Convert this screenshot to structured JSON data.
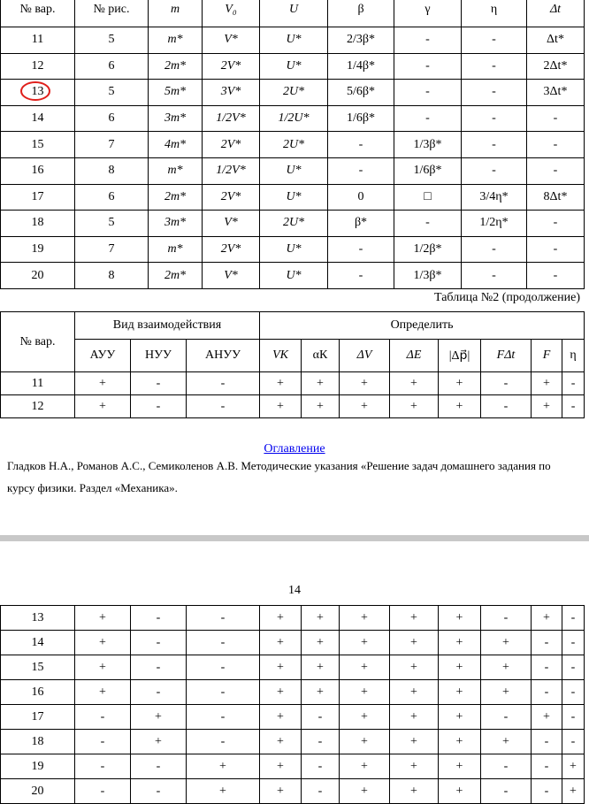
{
  "table1": {
    "header": [
      "№ вар.",
      "№ рис.",
      "m",
      "V₀",
      "U",
      "β",
      "γ",
      "η",
      "Δt"
    ],
    "rows": [
      [
        "11",
        "5",
        "m*",
        "V*",
        "U*",
        "2/3β*",
        "-",
        "-",
        "Δt*"
      ],
      [
        "12",
        "6",
        "2m*",
        "2V*",
        "U*",
        "1/4β*",
        "-",
        "-",
        "2Δt*"
      ],
      [
        "13",
        "5",
        "5m*",
        "3V*",
        "2U*",
        "5/6β*",
        "-",
        "-",
        "3Δt*"
      ],
      [
        "14",
        "6",
        "3m*",
        "1/2V*",
        "1/2U*",
        "1/6β*",
        "-",
        "-",
        "-"
      ],
      [
        "15",
        "7",
        "4m*",
        "2V*",
        "2U*",
        "-",
        "1/3β*",
        "-",
        "-"
      ],
      [
        "16",
        "8",
        "m*",
        "1/2V*",
        "U*",
        "-",
        "1/6β*",
        "-",
        "-"
      ],
      [
        "17",
        "6",
        "2m*",
        "2V*",
        "U*",
        "0",
        "□",
        "3/4η*",
        "8Δt*"
      ],
      [
        "18",
        "5",
        "3m*",
        "V*",
        "2U*",
        "β*",
        "-",
        "1/2η*",
        "-"
      ],
      [
        "19",
        "7",
        "m*",
        "2V*",
        "U*",
        "-",
        "1/2β*",
        "-",
        "-"
      ],
      [
        "20",
        "8",
        "2m*",
        "V*",
        "U*",
        "-",
        "1/3β*",
        "-",
        "-"
      ]
    ]
  },
  "caption": "Таблица №2 (продолжение)",
  "table2": {
    "header_top": [
      "№ вар.",
      "Вид взаимодействия",
      "Определить"
    ],
    "header_sub": [
      "АУУ",
      "НУУ",
      "АНУУ",
      "VК",
      "αК",
      "ΔV",
      "ΔE",
      "|Δp⃗|",
      "FΔt",
      "F",
      "η"
    ],
    "rows": [
      [
        "11",
        "+",
        "-",
        "-",
        "+",
        "+",
        "+",
        "+",
        "+",
        "-",
        "+",
        "-"
      ],
      [
        "12",
        "+",
        "-",
        "-",
        "+",
        "+",
        "+",
        "+",
        "+",
        "-",
        "+",
        "-"
      ]
    ]
  },
  "footer": {
    "link": "Оглавление",
    "citation": "Гладков Н.А., Романов А.С., Семиколенов А.В. Методические указания «Решение задач домашнего задания по курсу физики. Раздел «Механика»."
  },
  "page_number": "14",
  "table3": {
    "rows": [
      [
        "13",
        "+",
        "-",
        "-",
        "+",
        "+",
        "+",
        "+",
        "+",
        "-",
        "+",
        "-"
      ],
      [
        "14",
        "+",
        "-",
        "-",
        "+",
        "+",
        "+",
        "+",
        "+",
        "+",
        "-",
        "-"
      ],
      [
        "15",
        "+",
        "-",
        "-",
        "+",
        "+",
        "+",
        "+",
        "+",
        "+",
        "-",
        "-"
      ],
      [
        "16",
        "+",
        "-",
        "-",
        "+",
        "+",
        "+",
        "+",
        "+",
        "+",
        "-",
        "-"
      ],
      [
        "17",
        "-",
        "+",
        "-",
        "+",
        "-",
        "+",
        "+",
        "+",
        "-",
        "+",
        "-"
      ],
      [
        "18",
        "-",
        "+",
        "-",
        "+",
        "-",
        "+",
        "+",
        "+",
        "+",
        "-",
        "-"
      ],
      [
        "19",
        "-",
        "-",
        "+",
        "+",
        "-",
        "+",
        "+",
        "+",
        "-",
        "-",
        "+"
      ],
      [
        "20",
        "-",
        "-",
        "+",
        "+",
        "-",
        "+",
        "+",
        "+",
        "-",
        "-",
        "+"
      ]
    ]
  }
}
